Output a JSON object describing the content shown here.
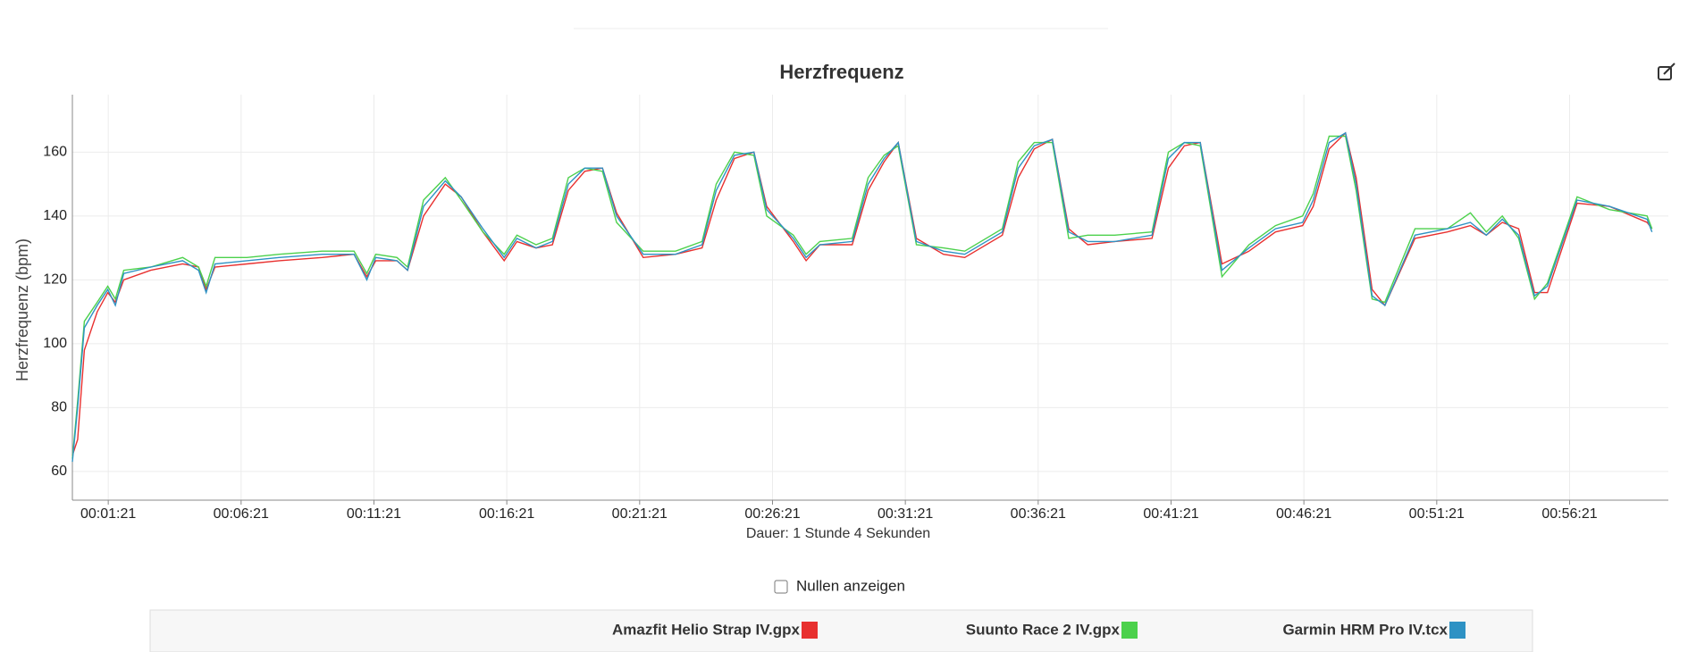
{
  "chart_data": {
    "type": "line",
    "title": "Herzfrequenz",
    "y_label": "Herzfrequenz (bpm)",
    "x_label": "Dauer: 1 Stunde 4 Sekunden",
    "x": [
      0,
      12,
      27,
      56,
      80,
      97,
      116,
      177,
      249,
      285,
      302,
      322,
      394,
      467,
      564,
      636,
      665,
      685,
      733,
      757,
      793,
      842,
      878,
      927,
      975,
      1004,
      1047,
      1084,
      1120,
      1157,
      1197,
      1229,
      1289,
      1362,
      1422,
      1454,
      1495,
      1539,
      1568,
      1628,
      1657,
      1688,
      1761,
      1797,
      1833,
      1865,
      1906,
      1967,
      2015,
      2100,
      2136,
      2172,
      2213,
      2250,
      2293,
      2354,
      2438,
      2475,
      2511,
      2547,
      2596,
      2657,
      2717,
      2778,
      2802,
      2838,
      2875,
      2899,
      2935,
      2964,
      3032,
      3105,
      3157,
      3193,
      3229,
      3266,
      3302,
      3331,
      3398,
      3471,
      3556,
      3567
    ],
    "series": [
      {
        "name": "Amazfit Helio Strap IV.gpx",
        "color": "#e8302f",
        "values": [
          65,
          70,
          98,
          110,
          116,
          113,
          120,
          123,
          125,
          124,
          117,
          124,
          125,
          126,
          127,
          128,
          121,
          126,
          126,
          123,
          140,
          150,
          146,
          135,
          126,
          132,
          130,
          131,
          148,
          154,
          155,
          141,
          127,
          128,
          130,
          145,
          158,
          160,
          143,
          132,
          126,
          131,
          131,
          148,
          157,
          163,
          133,
          128,
          127,
          134,
          152,
          161,
          164,
          136,
          131,
          132,
          133,
          155,
          162,
          163,
          125,
          129,
          135,
          137,
          143,
          161,
          166,
          152,
          117,
          112,
          133,
          135,
          137,
          134,
          138,
          136,
          116,
          116,
          144,
          143,
          138,
          136
        ]
      },
      {
        "name": "Suunto Race 2 IV.gpx",
        "color": "#4cd14c",
        "values": [
          64,
          82,
          107,
          113,
          118,
          114,
          123,
          124,
          127,
          124,
          118,
          127,
          127,
          128,
          129,
          129,
          122,
          128,
          127,
          124,
          145,
          152,
          145,
          135,
          128,
          134,
          131,
          133,
          152,
          155,
          154,
          138,
          129,
          129,
          132,
          150,
          160,
          159,
          140,
          134,
          128,
          132,
          133,
          152,
          159,
          162,
          131,
          130,
          129,
          136,
          157,
          163,
          163,
          133,
          134,
          134,
          135,
          160,
          163,
          162,
          121,
          131,
          137,
          140,
          147,
          165,
          165,
          148,
          114,
          113,
          136,
          136,
          141,
          135,
          140,
          133,
          114,
          119,
          146,
          142,
          140,
          136
        ]
      },
      {
        "name": "Garmin HRM Pro IV.tcx",
        "color": "#2e92c4",
        "values": [
          63,
          80,
          105,
          112,
          117,
          112,
          122,
          124,
          126,
          123,
          116,
          125,
          126,
          127,
          128,
          128,
          120,
          127,
          126,
          123,
          143,
          151,
          146,
          136,
          127,
          133,
          130,
          132,
          150,
          155,
          155,
          140,
          128,
          128,
          131,
          148,
          159,
          160,
          142,
          133,
          127,
          131,
          132,
          150,
          158,
          163,
          132,
          129,
          128,
          135,
          155,
          162,
          164,
          135,
          132,
          132,
          134,
          158,
          163,
          163,
          123,
          130,
          136,
          138,
          145,
          163,
          166,
          150,
          115,
          112,
          134,
          136,
          138,
          134,
          139,
          134,
          115,
          118,
          145,
          143,
          139,
          135
        ]
      }
    ],
    "xlim": [
      0,
      3604
    ],
    "xticks": [
      {
        "value": 81,
        "label": "00:01:21"
      },
      {
        "value": 381,
        "label": "00:06:21"
      },
      {
        "value": 681,
        "label": "00:11:21"
      },
      {
        "value": 981,
        "label": "00:16:21"
      },
      {
        "value": 1281,
        "label": "00:21:21"
      },
      {
        "value": 1581,
        "label": "00:26:21"
      },
      {
        "value": 1881,
        "label": "00:31:21"
      },
      {
        "value": 2181,
        "label": "00:36:21"
      },
      {
        "value": 2481,
        "label": "00:41:21"
      },
      {
        "value": 2781,
        "label": "00:46:21"
      },
      {
        "value": 3081,
        "label": "00:51:21"
      },
      {
        "value": 3381,
        "label": "00:56:21"
      }
    ],
    "ylim": [
      51,
      178
    ],
    "yticks": [
      60,
      80,
      100,
      120,
      140,
      160
    ],
    "grid": true
  },
  "controls": {
    "show_zeros": "Nullen anzeigen"
  }
}
